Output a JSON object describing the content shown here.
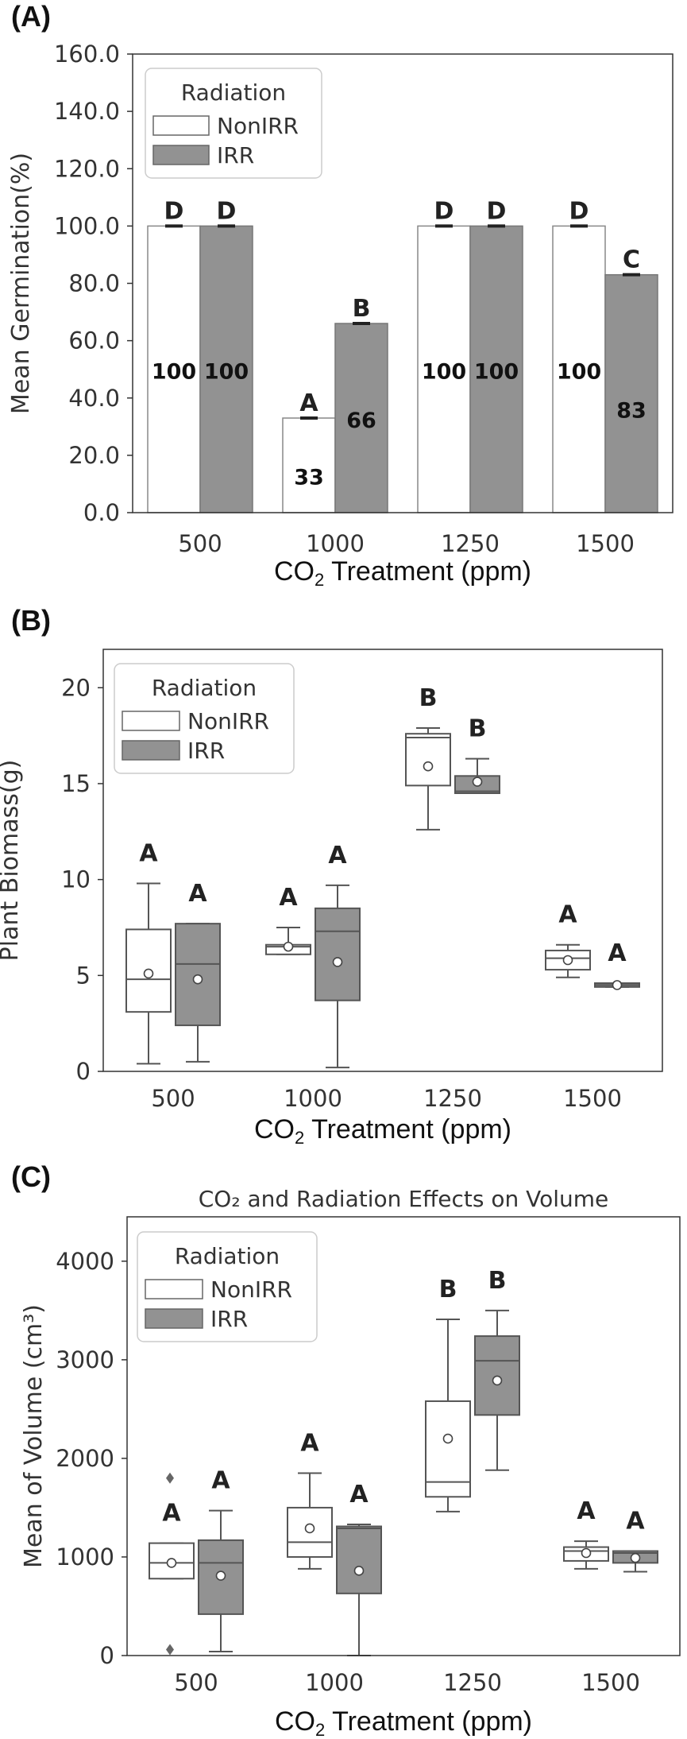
{
  "colors": {
    "nonirr": "#ffffff",
    "irr": "#929292",
    "edge": "#555555",
    "axis": "#333333"
  },
  "chart_data": [
    {
      "panel": "(A)",
      "type": "bar",
      "categories": [
        "500",
        "1000",
        "1250",
        "1500"
      ],
      "series": [
        {
          "name": "NonIRR",
          "values": [
            100,
            33,
            100,
            100
          ],
          "labels": [
            "100",
            "33",
            "100",
            "100"
          ],
          "letters": [
            "D",
            "A",
            "D",
            "D"
          ]
        },
        {
          "name": "IRR",
          "values": [
            100,
            66,
            100,
            83
          ],
          "labels": [
            "100",
            "66",
            "100",
            "83"
          ],
          "letters": [
            "D",
            "B",
            "D",
            "C"
          ]
        }
      ],
      "ylim": [
        0,
        160
      ],
      "yticks": [
        "0.0",
        "20.0",
        "40.0",
        "60.0",
        "80.0",
        "100.0",
        "120.0",
        "140.0",
        "160.0"
      ],
      "ylabel": "Mean Germination(%)",
      "xlabel_main": "CO",
      "xlabel_sub": "2",
      "xlabel_rest": " Treatment (ppm)",
      "legend_title": "Radiation",
      "legend_position": "top-left"
    },
    {
      "panel": "(B)",
      "type": "box",
      "categories": [
        "500",
        "1000",
        "1250",
        "1500"
      ],
      "series": [
        {
          "name": "NonIRR",
          "boxes": [
            {
              "min": 0.4,
              "q1": 3.1,
              "median": 4.8,
              "q3": 7.4,
              "max": 9.8,
              "mean": 5.1,
              "letter": "A"
            },
            {
              "min": 6.1,
              "q1": 6.1,
              "median": 6.5,
              "q3": 6.6,
              "max": 7.5,
              "mean": 6.5,
              "letter": "A"
            },
            {
              "min": 12.6,
              "q1": 14.9,
              "median": 17.4,
              "q3": 17.6,
              "max": 17.9,
              "mean": 15.9,
              "letter": "B"
            },
            {
              "min": 4.9,
              "q1": 5.3,
              "median": 5.9,
              "q3": 6.3,
              "max": 6.6,
              "mean": 5.8,
              "letter": "A"
            }
          ]
        },
        {
          "name": "IRR",
          "boxes": [
            {
              "min": 0.5,
              "q1": 2.4,
              "median": 5.6,
              "q3": 7.7,
              "max": 7.7,
              "mean": 4.8,
              "letter": "A"
            },
            {
              "min": 0.2,
              "q1": 3.7,
              "median": 7.3,
              "q3": 8.5,
              "max": 9.7,
              "mean": 5.7,
              "letter": "A"
            },
            {
              "min": 14.5,
              "q1": 14.5,
              "median": 14.6,
              "q3": 15.4,
              "max": 16.3,
              "mean": 15.1,
              "letter": "B"
            },
            {
              "min": 4.4,
              "q1": 4.4,
              "median": 4.5,
              "q3": 4.6,
              "max": 4.6,
              "mean": 4.5,
              "letter": "A"
            }
          ]
        }
      ],
      "ylim": [
        0,
        22
      ],
      "yticks": [
        "0",
        "5",
        "10",
        "15",
        "20"
      ],
      "ytick_values": [
        0,
        5,
        10,
        15,
        20
      ],
      "ylabel": "Plant Biomass(g)",
      "xlabel_main": "CO",
      "xlabel_sub": "2",
      "xlabel_rest": " Treatment (ppm)",
      "legend_title": "Radiation",
      "legend_position": "top-left"
    },
    {
      "panel": "(C)",
      "type": "box",
      "title": "CO₂ and Radiation Effects on Volume",
      "categories": [
        "500",
        "1000",
        "1250",
        "1500"
      ],
      "series": [
        {
          "name": "NonIRR",
          "boxes": [
            {
              "min": 780,
              "q1": 780,
              "median": 940,
              "q3": 1140,
              "max": 1140,
              "mean": 940,
              "outliers": [
                1800,
                60
              ],
              "letter": "A"
            },
            {
              "min": 880,
              "q1": 1000,
              "median": 1150,
              "q3": 1500,
              "max": 1850,
              "mean": 1290,
              "letter": "A"
            },
            {
              "min": 1460,
              "q1": 1610,
              "median": 1760,
              "q3": 2580,
              "max": 3410,
              "mean": 2200,
              "letter": "B"
            },
            {
              "min": 880,
              "q1": 960,
              "median": 1060,
              "q3": 1100,
              "max": 1160,
              "mean": 1040,
              "letter": "A"
            }
          ]
        },
        {
          "name": "IRR",
          "boxes": [
            {
              "min": 40,
              "q1": 420,
              "median": 940,
              "q3": 1170,
              "max": 1470,
              "mean": 810,
              "letter": "A"
            },
            {
              "min": 0,
              "q1": 630,
              "median": 1290,
              "q3": 1310,
              "max": 1330,
              "mean": 860,
              "letter": "A"
            },
            {
              "min": 1880,
              "q1": 2440,
              "median": 2990,
              "q3": 3240,
              "max": 3500,
              "mean": 2790,
              "letter": "B"
            },
            {
              "min": 850,
              "q1": 940,
              "median": 1040,
              "q3": 1060,
              "max": 1060,
              "mean": 990,
              "letter": "A"
            }
          ]
        }
      ],
      "ylim": [
        0,
        4450
      ],
      "yticks": [
        "0",
        "1000",
        "2000",
        "3000",
        "4000"
      ],
      "ytick_values": [
        0,
        1000,
        2000,
        3000,
        4000
      ],
      "ylabel": "Mean of Volume (cm³)",
      "xlabel_main": "CO",
      "xlabel_sub": "2",
      "xlabel_rest": " Treatment (ppm)",
      "legend_title": "Radiation",
      "legend_position": "top-left"
    }
  ]
}
